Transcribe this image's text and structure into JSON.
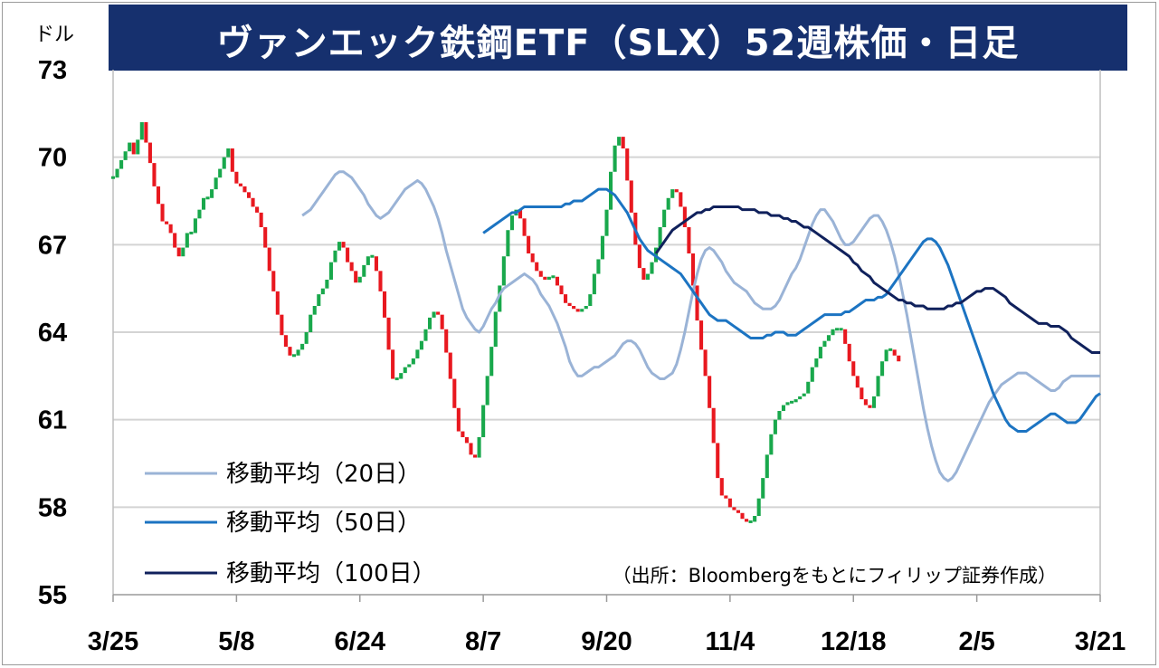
{
  "chart_data": {
    "type": "candlestick",
    "title": "ヴァンエック鉄鋼ETF（SLX）52週株価・日足",
    "y_unit": "ドル",
    "source": "（出所：Bloombergをもとにフィリップ証券作成）",
    "ylim": [
      55,
      73
    ],
    "y_ticks": [
      {
        "value": 73,
        "label": "73"
      },
      {
        "value": 70,
        "label": "70"
      },
      {
        "value": 67,
        "label": "67"
      },
      {
        "value": 64,
        "label": "64"
      },
      {
        "value": 61,
        "label": "61"
      },
      {
        "value": 58,
        "label": "58"
      },
      {
        "value": 55,
        "label": "55"
      }
    ],
    "grid": true,
    "x_ticks": [
      {
        "i": 0,
        "label": "3/25"
      },
      {
        "i": 30,
        "label": "5/8"
      },
      {
        "i": 60,
        "label": "6/24"
      },
      {
        "i": 90,
        "label": "8/7"
      },
      {
        "i": 120,
        "label": "9/20"
      },
      {
        "i": 150,
        "label": "11/4"
      },
      {
        "i": 180,
        "label": "12/18"
      },
      {
        "i": 210,
        "label": "2/5"
      },
      {
        "i": 240,
        "label": "3/21"
      }
    ],
    "candles_close": [
      69.3,
      69.6,
      69.9,
      70.2,
      70.5,
      70.1,
      70.6,
      71.2,
      70.5,
      69.8,
      69.0,
      68.4,
      67.8,
      67.7,
      67.4,
      66.9,
      66.6,
      66.9,
      67.4,
      67.4,
      67.9,
      68.2,
      68.6,
      68.6,
      68.9,
      69.3,
      69.6,
      70.0,
      70.3,
      69.5,
      69.1,
      69.0,
      68.8,
      68.6,
      68.3,
      68.1,
      67.6,
      66.9,
      66.1,
      65.4,
      64.6,
      63.9,
      63.5,
      63.2,
      63.2,
      63.4,
      63.6,
      64.0,
      64.6,
      64.9,
      65.3,
      65.5,
      65.8,
      66.4,
      66.8,
      67.1,
      66.9,
      66.4,
      66.1,
      65.7,
      65.9,
      66.3,
      66.6,
      66.6,
      66.1,
      65.4,
      64.5,
      63.4,
      62.4,
      62.4,
      62.6,
      62.8,
      62.9,
      63.1,
      63.4,
      63.7,
      64.1,
      64.5,
      64.7,
      64.6,
      64.1,
      63.3,
      62.4,
      61.4,
      60.6,
      60.4,
      60.2,
      59.8,
      59.7,
      60.4,
      61.5,
      62.5,
      63.5,
      64.7,
      65.6,
      66.6,
      67.5,
      68.0,
      68.2,
      67.9,
      67.3,
      66.7,
      66.4,
      66.1,
      65.9,
      65.8,
      65.9,
      65.9,
      65.6,
      65.3,
      65.0,
      64.9,
      64.8,
      64.7,
      64.8,
      64.9,
      65.3,
      66.0,
      66.5,
      67.3,
      68.2,
      69.5,
      70.4,
      70.7,
      70.3,
      69.2,
      68.1,
      67.0,
      66.2,
      65.8,
      66.0,
      66.4,
      66.9,
      67.6,
      68.2,
      68.6,
      68.9,
      68.8,
      68.3,
      67.6,
      66.7,
      65.6,
      64.4,
      63.4,
      62.5,
      61.4,
      60.2,
      59.0,
      58.4,
      58.3,
      58.0,
      57.9,
      57.8,
      57.6,
      57.5,
      57.5,
      57.7,
      58.3,
      59.0,
      59.8,
      60.5,
      61.0,
      61.3,
      61.5,
      61.6,
      61.6,
      61.7,
      61.8,
      61.9,
      62.3,
      62.8,
      63.1,
      63.5,
      63.7,
      63.9,
      64.1,
      64.1,
      64.1,
      63.6,
      63.0,
      62.5,
      62.1,
      61.7,
      61.5,
      61.4,
      61.8,
      62.5,
      63.0,
      63.4,
      63.4,
      63.2,
      63.0
    ],
    "series": [
      {
        "name": "移動平均（20日）",
        "color": "#9ab3d6",
        "values": [
          68.0,
          68.1,
          68.2,
          68.4,
          68.6,
          68.8,
          69.0,
          69.2,
          69.4,
          69.5,
          69.5,
          69.4,
          69.3,
          69.1,
          68.9,
          68.7,
          68.4,
          68.2,
          68.0,
          67.9,
          68.0,
          68.1,
          68.3,
          68.5,
          68.7,
          68.9,
          69.0,
          69.1,
          69.2,
          69.1,
          68.9,
          68.6,
          68.3,
          67.9,
          67.4,
          66.8,
          66.3,
          65.8,
          65.3,
          64.8,
          64.5,
          64.3,
          64.1,
          64.0,
          64.2,
          64.5,
          64.8,
          65.0,
          65.3,
          65.5,
          65.6,
          65.7,
          65.8,
          65.9,
          66.0,
          65.9,
          65.8,
          65.6,
          65.3,
          65.1,
          64.9,
          64.6,
          64.3,
          63.9,
          63.5,
          63.0,
          62.7,
          62.5,
          62.5,
          62.6,
          62.7,
          62.8,
          62.8,
          62.9,
          63.0,
          63.1,
          63.2,
          63.4,
          63.6,
          63.7,
          63.7,
          63.6,
          63.4,
          63.1,
          62.8,
          62.6,
          62.5,
          62.4,
          62.4,
          62.5,
          62.6,
          62.9,
          63.4,
          64.0,
          64.7,
          65.4,
          66.0,
          66.5,
          66.8,
          66.9,
          66.8,
          66.6,
          66.4,
          66.1,
          65.9,
          65.7,
          65.6,
          65.5,
          65.4,
          65.2,
          65.0,
          64.9,
          64.8,
          64.8,
          64.8,
          64.9,
          65.1,
          65.4,
          65.7,
          66.0,
          66.2,
          66.5,
          66.9,
          67.3,
          67.7,
          68.0,
          68.2,
          68.2,
          68.0,
          67.8,
          67.5,
          67.2,
          67.0,
          67.0,
          67.1,
          67.3,
          67.5,
          67.7,
          67.9,
          68.0,
          68.0,
          67.8,
          67.5,
          67.1,
          66.6,
          66.0,
          65.3,
          64.6,
          63.8,
          63.0,
          62.2,
          61.4,
          60.7,
          60.1,
          59.6,
          59.2,
          59.0,
          58.9,
          59.0,
          59.2,
          59.5,
          59.8,
          60.1,
          60.4,
          60.7,
          61.0,
          61.3,
          61.6,
          61.8,
          62.0,
          62.2,
          62.3,
          62.4,
          62.5,
          62.6,
          62.6,
          62.6,
          62.5,
          62.4,
          62.3,
          62.2,
          62.1,
          62.0,
          62.0,
          62.1,
          62.3,
          62.4,
          62.5,
          62.5,
          62.5,
          62.5,
          62.5,
          62.5,
          62.5,
          62.5
        ]
      },
      {
        "name": "移動平均（50日）",
        "color": "#1c74c2",
        "values": [
          67.4,
          67.5,
          67.6,
          67.7,
          67.8,
          67.9,
          68.0,
          68.1,
          68.1,
          68.2,
          68.3,
          68.3,
          68.3,
          68.3,
          68.3,
          68.3,
          68.3,
          68.3,
          68.3,
          68.3,
          68.4,
          68.4,
          68.5,
          68.5,
          68.5,
          68.6,
          68.7,
          68.8,
          68.9,
          68.9,
          68.9,
          68.8,
          68.7,
          68.5,
          68.3,
          68.1,
          67.8,
          67.5,
          67.2,
          67.0,
          66.8,
          66.7,
          66.6,
          66.5,
          66.4,
          66.3,
          66.2,
          66.1,
          66.0,
          65.8,
          65.6,
          65.4,
          65.2,
          65.0,
          64.8,
          64.6,
          64.5,
          64.4,
          64.4,
          64.4,
          64.3,
          64.2,
          64.1,
          64.0,
          63.9,
          63.8,
          63.8,
          63.8,
          63.8,
          63.9,
          63.9,
          64.0,
          64.0,
          64.0,
          63.9,
          63.9,
          63.9,
          64.0,
          64.1,
          64.2,
          64.3,
          64.4,
          64.5,
          64.6,
          64.6,
          64.6,
          64.6,
          64.6,
          64.7,
          64.7,
          64.8,
          64.9,
          65.0,
          65.1,
          65.1,
          65.1,
          65.2,
          65.2,
          65.3,
          65.5,
          65.7,
          65.9,
          66.1,
          66.3,
          66.5,
          66.7,
          66.9,
          67.1,
          67.2,
          67.2,
          67.1,
          66.9,
          66.6,
          66.3,
          65.9,
          65.5,
          65.1,
          64.7,
          64.3,
          63.9,
          63.5,
          63.1,
          62.7,
          62.3,
          61.9,
          61.6,
          61.3,
          61.0,
          60.8,
          60.7,
          60.6,
          60.6,
          60.6,
          60.7,
          60.8,
          60.9,
          61.0,
          61.1,
          61.2,
          61.2,
          61.1,
          61.0,
          60.9,
          60.9,
          60.9,
          61.0,
          61.2,
          61.4,
          61.6,
          61.8,
          61.9
        ]
      },
      {
        "name": "移動平均（100日）",
        "color": "#10215c",
        "values": [
          66.7,
          66.9,
          67.1,
          67.3,
          67.5,
          67.6,
          67.7,
          67.8,
          67.9,
          68.0,
          68.1,
          68.1,
          68.2,
          68.2,
          68.3,
          68.3,
          68.3,
          68.3,
          68.3,
          68.3,
          68.3,
          68.2,
          68.2,
          68.2,
          68.2,
          68.1,
          68.1,
          68.1,
          68.0,
          68.0,
          68.0,
          67.9,
          67.9,
          67.8,
          67.8,
          67.7,
          67.6,
          67.6,
          67.5,
          67.4,
          67.3,
          67.2,
          67.1,
          67.0,
          66.9,
          66.8,
          66.7,
          66.6,
          66.4,
          66.3,
          66.1,
          66.0,
          65.9,
          65.7,
          65.6,
          65.5,
          65.4,
          65.3,
          65.2,
          65.1,
          65.1,
          65.0,
          65.0,
          64.9,
          64.9,
          64.9,
          64.8,
          64.8,
          64.8,
          64.8,
          64.8,
          64.9,
          64.9,
          65.0,
          65.0,
          65.1,
          65.2,
          65.3,
          65.4,
          65.4,
          65.5,
          65.5,
          65.5,
          65.4,
          65.3,
          65.2,
          65.0,
          64.9,
          64.8,
          64.7,
          64.6,
          64.5,
          64.4,
          64.3,
          64.3,
          64.3,
          64.2,
          64.2,
          64.2,
          64.1,
          64.0,
          63.8,
          63.7,
          63.6,
          63.5,
          63.4,
          63.3,
          63.3,
          63.3
        ]
      }
    ]
  },
  "legend": [
    {
      "label": "移動平均（20日）",
      "color": "#9ab3d6"
    },
    {
      "label": "移動平均（50日）",
      "color": "#1c74c2"
    },
    {
      "label": "移動平均（100日）",
      "color": "#10215c"
    }
  ]
}
